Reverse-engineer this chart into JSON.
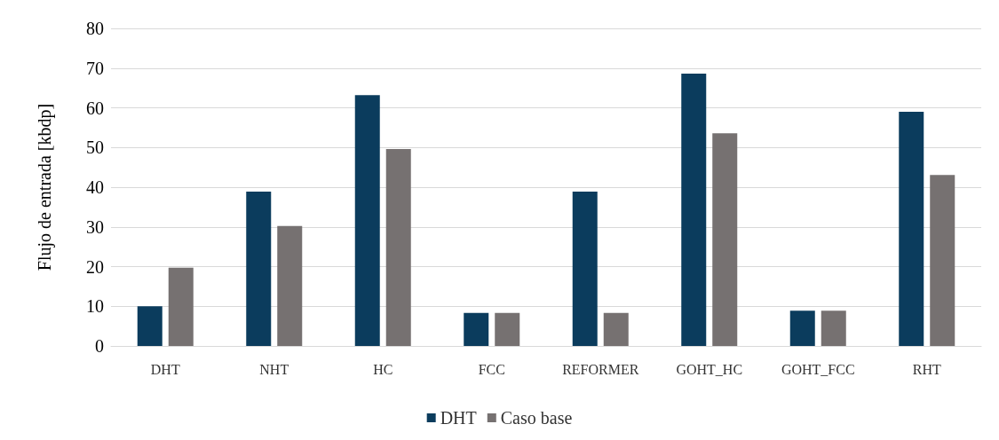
{
  "chart_data": {
    "type": "bar",
    "ylabel": "Flujo de entrada [kbdp]",
    "categories": [
      "DHT",
      "NHT",
      "HC",
      "FCC",
      "REFORMER",
      "GOHT_HC",
      "GOHT_FCC",
      "RHT"
    ],
    "series": [
      {
        "name": "DHT",
        "color": "#0b3c5d",
        "values": [
          10,
          38.9,
          63.2,
          8.3,
          38.9,
          68.6,
          8.9,
          59
        ]
      },
      {
        "name": "Caso base",
        "color": "#767171",
        "values": [
          19.7,
          30.2,
          49.6,
          8.3,
          8.3,
          53.6,
          8.9,
          43.1
        ]
      }
    ],
    "ylim": [
      0,
      80
    ],
    "yticks": [
      0,
      10,
      20,
      30,
      40,
      50,
      60,
      70,
      80
    ],
    "grid": "y",
    "legend": "bottom"
  }
}
